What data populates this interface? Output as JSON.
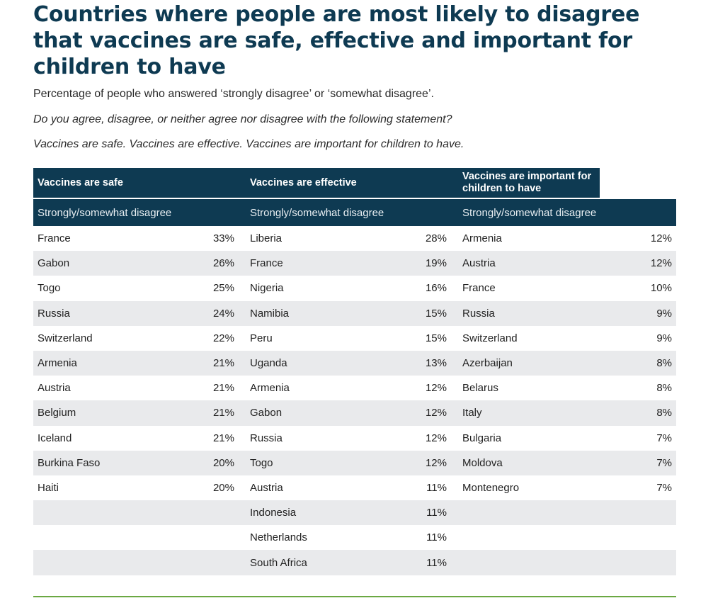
{
  "title": "Countries where people are most likely to disagree that vaccines are safe, effective and important for children to have",
  "subtitle": "Percentage of people who answered ‘strongly disagree’ or ‘somewhat disagree’.",
  "question": "Do you agree, disagree, or neither agree nor disagree with the following statement?",
  "statement": "Vaccines are safe. Vaccines are effective. Vaccines are important for children to have.",
  "colors": {
    "header_bg": "#0e3a52",
    "stripe": "#e9eaec",
    "rule": "#6ba843"
  },
  "table": {
    "columns": [
      {
        "header": "Vaccines are safe",
        "subheader": "Strongly/somewhat disagree"
      },
      {
        "header": "Vaccines are effective",
        "subheader": "Strongly/somewhat disagree"
      },
      {
        "header": "Vaccines are important for children to have",
        "subheader": "Strongly/somewhat disagree"
      }
    ],
    "rows": [
      [
        [
          "France",
          "33%"
        ],
        [
          "Liberia",
          "28%"
        ],
        [
          "Armenia",
          "12%"
        ]
      ],
      [
        [
          "Gabon",
          "26%"
        ],
        [
          "France",
          "19%"
        ],
        [
          "Austria",
          "12%"
        ]
      ],
      [
        [
          "Togo",
          "25%"
        ],
        [
          "Nigeria",
          "16%"
        ],
        [
          "France",
          "10%"
        ]
      ],
      [
        [
          "Russia",
          "24%"
        ],
        [
          "Namibia",
          "15%"
        ],
        [
          "Russia",
          "9%"
        ]
      ],
      [
        [
          "Switzerland",
          "22%"
        ],
        [
          "Peru",
          "15%"
        ],
        [
          "Switzerland",
          "9%"
        ]
      ],
      [
        [
          "Armenia",
          "21%"
        ],
        [
          "Uganda",
          "13%"
        ],
        [
          "Azerbaijan",
          "8%"
        ]
      ],
      [
        [
          "Austria",
          "21%"
        ],
        [
          "Armenia",
          "12%"
        ],
        [
          "Belarus",
          "8%"
        ]
      ],
      [
        [
          "Belgium",
          "21%"
        ],
        [
          "Gabon",
          "12%"
        ],
        [
          "Italy",
          "8%"
        ]
      ],
      [
        [
          "Iceland",
          "21%"
        ],
        [
          "Russia",
          "12%"
        ],
        [
          "Bulgaria",
          "7%"
        ]
      ],
      [
        [
          "Burkina Faso",
          "20%"
        ],
        [
          "Togo",
          "12%"
        ],
        [
          "Moldova",
          "7%"
        ]
      ],
      [
        [
          "Haiti",
          "20%"
        ],
        [
          "Austria",
          "11%"
        ],
        [
          "Montenegro",
          "7%"
        ]
      ],
      [
        [
          "",
          ""
        ],
        [
          "Indonesia",
          "11%"
        ],
        [
          "",
          ""
        ]
      ],
      [
        [
          "",
          ""
        ],
        [
          "Netherlands",
          "11%"
        ],
        [
          "",
          ""
        ]
      ],
      [
        [
          "",
          ""
        ],
        [
          "South Africa",
          "11%"
        ],
        [
          "",
          ""
        ]
      ]
    ]
  }
}
